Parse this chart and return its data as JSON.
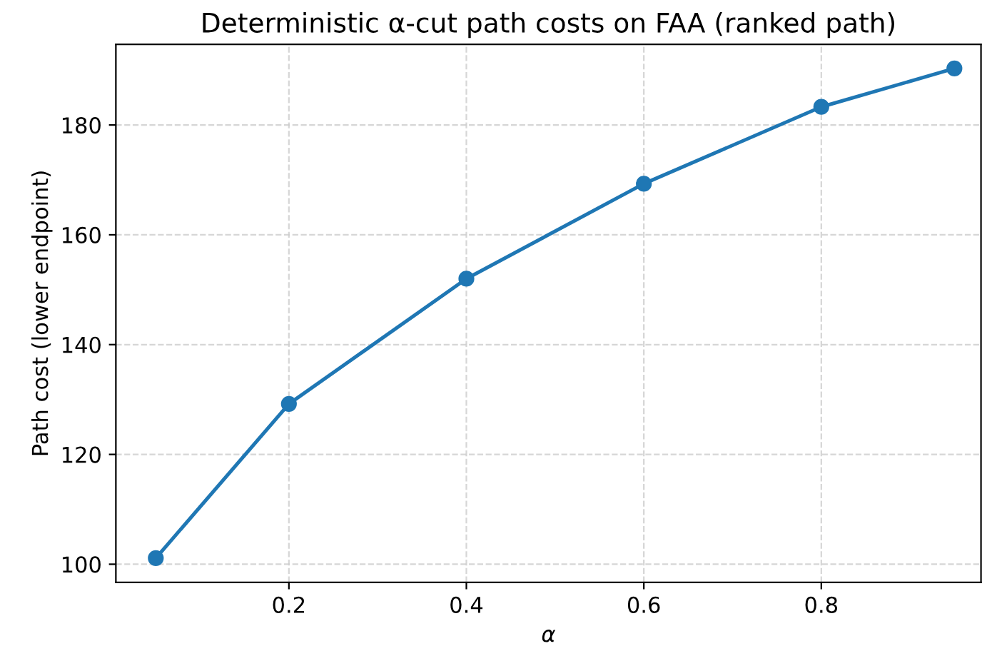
{
  "chart_data": {
    "type": "line",
    "title": "Deterministic α-cut path costs on FAA (ranked path)",
    "xlabel": "α",
    "ylabel": "Path cost (lower endpoint)",
    "x": [
      0.05,
      0.2,
      0.4,
      0.6,
      0.8,
      0.95
    ],
    "series": [
      {
        "color": "#1f77b4",
        "values": [
          101.1,
          129.2,
          152.0,
          169.3,
          183.3,
          190.3
        ]
      }
    ],
    "xlim": [
      0.005,
      0.98
    ],
    "xticks": [
      0.2,
      0.4,
      0.6,
      0.8
    ],
    "ylim": [
      96.7,
      194.7
    ],
    "yticks": [
      100,
      120,
      140,
      160,
      180
    ],
    "grid": true,
    "marker": "circle",
    "line_style": "solid"
  }
}
